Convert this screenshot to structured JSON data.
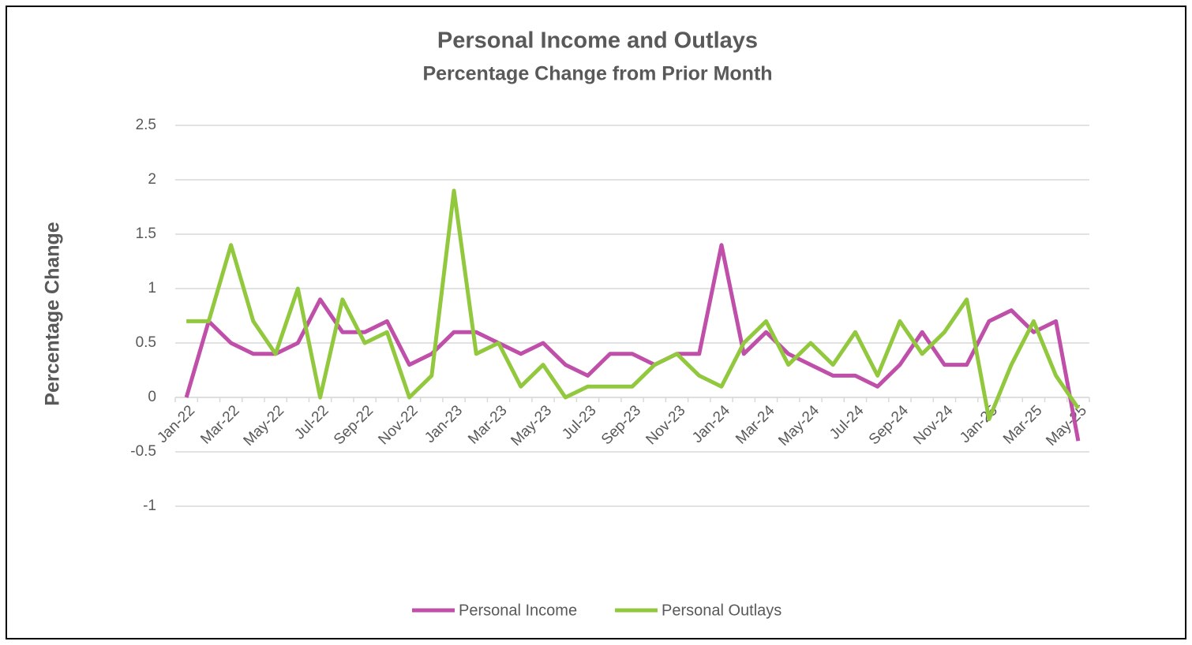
{
  "chart_data": {
    "type": "line",
    "title": "Personal Income and Outlays",
    "subtitle": "Percentage Change from Prior Month",
    "y_label": "Percentage Change",
    "categories": [
      "Jan-22",
      null,
      "Mar-22",
      null,
      "May-22",
      null,
      "Jul-22",
      null,
      "Sep-22",
      null,
      "Nov-22",
      null,
      "Jan-23",
      null,
      "Mar-23",
      null,
      "May-23",
      null,
      "Jul-23",
      null,
      "Sep-23",
      null,
      "Nov-23",
      null,
      "Jan-24",
      null,
      "Mar-24",
      null,
      "May-24",
      null,
      "Jul-24",
      null,
      "Sep-24",
      null,
      "Nov-24",
      null,
      "Jan-25",
      null,
      "Mar-25",
      null,
      "May-25"
    ],
    "series": [
      {
        "name": "Personal Income",
        "color": "#bf4fa8",
        "values": [
          0,
          0.7,
          0.5,
          0.4,
          0.4,
          0.5,
          0.9,
          0.6,
          0.6,
          0.7,
          0.3,
          0.4,
          0.6,
          0.6,
          0.5,
          0.4,
          0.5,
          0.3,
          0.2,
          0.4,
          0.4,
          0.3,
          0.4,
          0.4,
          1.4,
          0.4,
          0.6,
          0.4,
          0.3,
          0.2,
          0.2,
          0.1,
          0.3,
          0.6,
          0.3,
          0.3,
          0.7,
          0.8,
          0.6,
          0.7,
          -0.4
        ]
      },
      {
        "name": "Personal Outlays",
        "color": "#92c83e",
        "values": [
          0.7,
          0.7,
          1.4,
          0.7,
          0.4,
          1.0,
          0,
          0.9,
          0.5,
          0.6,
          0,
          0.2,
          1.9,
          0.4,
          0.5,
          0.1,
          0.3,
          0,
          0.1,
          0.1,
          0.1,
          0.3,
          0.4,
          0.2,
          0.1,
          0.5,
          0.7,
          0.3,
          0.5,
          0.3,
          0.6,
          0.2,
          0.7,
          0.4,
          0.6,
          0.9,
          -0.2,
          0.3,
          0.7,
          0.2,
          -0.1
        ]
      }
    ],
    "ylim": [
      -1,
      2.5
    ],
    "yticks": [
      2.5,
      2,
      1.5,
      1,
      0.5,
      0,
      -0.5,
      -1
    ],
    "grid": true,
    "legend": "bottom"
  }
}
